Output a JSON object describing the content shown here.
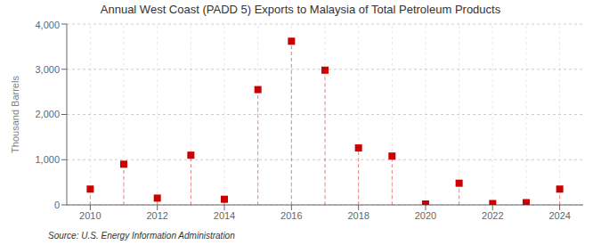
{
  "chart_data": {
    "type": "scatter",
    "title": "Annual West Coast (PADD 5) Exports to Malaysia of Total Petroleum Products",
    "ylabel": "Thousand Barrels",
    "x": [
      2010,
      2011,
      2012,
      2013,
      2014,
      2015,
      2016,
      2017,
      2018,
      2019,
      2020,
      2021,
      2022,
      2023,
      2024
    ],
    "values": [
      350,
      900,
      150,
      1100,
      125,
      2550,
      3620,
      2980,
      1260,
      1080,
      20,
      480,
      30,
      50,
      350
    ],
    "color": "#cc0000",
    "marker": "square",
    "xlim": [
      2009.3,
      2024.7
    ],
    "xticks": [
      2010,
      2012,
      2014,
      2016,
      2018,
      2020,
      2022,
      2024
    ],
    "ylim": [
      0,
      4000
    ],
    "yticks": [
      0,
      {
        "value": 1000,
        "label": "1,000"
      },
      {
        "value": 2000,
        "label": "2,000"
      },
      {
        "value": 3000,
        "label": "3,000"
      },
      {
        "value": 4000,
        "label": "4,000"
      }
    ],
    "grid": true,
    "annotations": [
      "Source: U.S. Energy Information Administration"
    ]
  }
}
